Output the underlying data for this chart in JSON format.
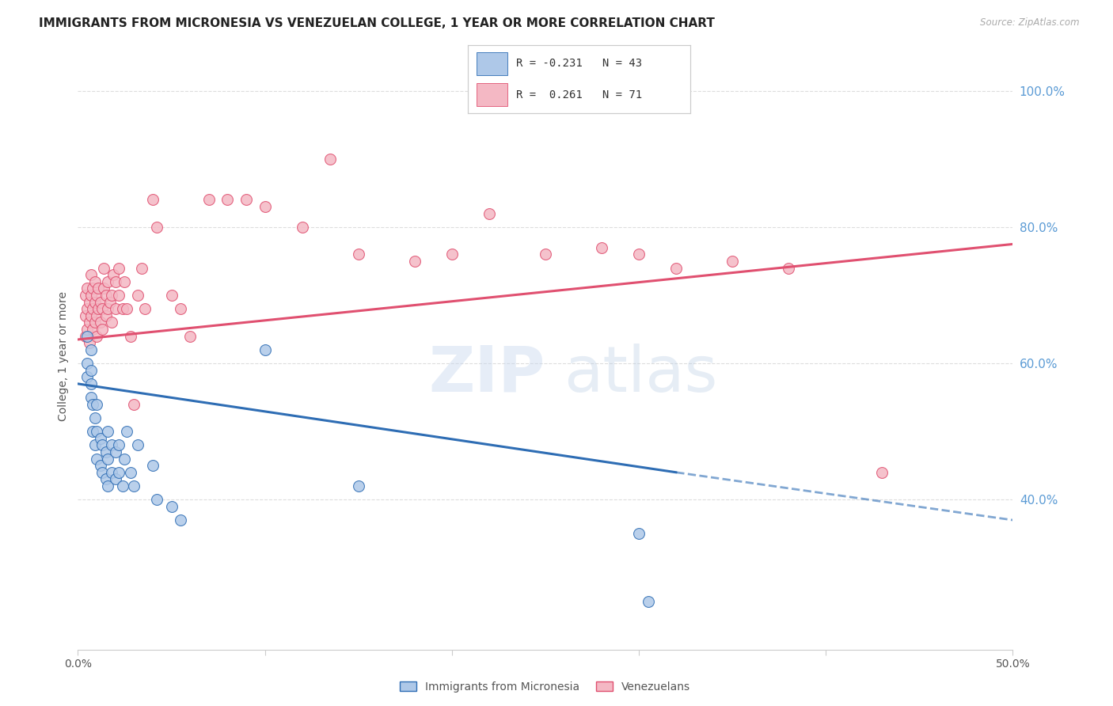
{
  "title": "IMMIGRANTS FROM MICRONESIA VS VENEZUELAN COLLEGE, 1 YEAR OR MORE CORRELATION CHART",
  "source": "Source: ZipAtlas.com",
  "ylabel": "College, 1 year or more",
  "xlim": [
    0.0,
    0.5
  ],
  "ylim": [
    0.18,
    1.04
  ],
  "xticks": [
    0.0,
    0.1,
    0.2,
    0.3,
    0.4,
    0.5
  ],
  "xticklabels": [
    "0.0%",
    "",
    "",
    "",
    "",
    "50.0%"
  ],
  "yticks_right": [
    0.4,
    0.6,
    0.8,
    1.0
  ],
  "ytick_right_labels": [
    "40.0%",
    "60.0%",
    "80.0%",
    "100.0%"
  ],
  "blue_label": "Immigrants from Micronesia",
  "pink_label": "Venezuelans",
  "blue_R": -0.231,
  "blue_N": 43,
  "pink_R": 0.261,
  "pink_N": 71,
  "blue_color": "#AEC8E8",
  "pink_color": "#F4B8C4",
  "blue_line_color": "#2E6DB4",
  "pink_line_color": "#E05070",
  "blue_scatter_x": [
    0.005,
    0.005,
    0.005,
    0.007,
    0.007,
    0.007,
    0.007,
    0.008,
    0.008,
    0.009,
    0.009,
    0.01,
    0.01,
    0.01,
    0.012,
    0.012,
    0.013,
    0.013,
    0.015,
    0.015,
    0.016,
    0.016,
    0.016,
    0.018,
    0.018,
    0.02,
    0.02,
    0.022,
    0.022,
    0.024,
    0.025,
    0.026,
    0.028,
    0.03,
    0.032,
    0.04,
    0.042,
    0.05,
    0.055,
    0.1,
    0.15,
    0.3,
    0.305
  ],
  "blue_scatter_y": [
    0.58,
    0.6,
    0.64,
    0.55,
    0.57,
    0.59,
    0.62,
    0.5,
    0.54,
    0.48,
    0.52,
    0.46,
    0.5,
    0.54,
    0.45,
    0.49,
    0.44,
    0.48,
    0.43,
    0.47,
    0.42,
    0.46,
    0.5,
    0.44,
    0.48,
    0.43,
    0.47,
    0.44,
    0.48,
    0.42,
    0.46,
    0.5,
    0.44,
    0.42,
    0.48,
    0.45,
    0.4,
    0.39,
    0.37,
    0.62,
    0.42,
    0.35,
    0.25
  ],
  "pink_scatter_x": [
    0.004,
    0.004,
    0.004,
    0.005,
    0.005,
    0.005,
    0.006,
    0.006,
    0.006,
    0.007,
    0.007,
    0.007,
    0.008,
    0.008,
    0.008,
    0.009,
    0.009,
    0.009,
    0.01,
    0.01,
    0.01,
    0.011,
    0.011,
    0.012,
    0.012,
    0.013,
    0.013,
    0.014,
    0.014,
    0.015,
    0.015,
    0.016,
    0.016,
    0.017,
    0.018,
    0.018,
    0.019,
    0.02,
    0.02,
    0.022,
    0.022,
    0.024,
    0.025,
    0.026,
    0.028,
    0.03,
    0.032,
    0.034,
    0.036,
    0.04,
    0.042,
    0.05,
    0.055,
    0.06,
    0.07,
    0.08,
    0.09,
    0.1,
    0.12,
    0.135,
    0.15,
    0.18,
    0.2,
    0.22,
    0.25,
    0.28,
    0.3,
    0.32,
    0.35,
    0.38,
    0.43
  ],
  "pink_scatter_y": [
    0.64,
    0.67,
    0.7,
    0.65,
    0.68,
    0.71,
    0.63,
    0.66,
    0.69,
    0.67,
    0.7,
    0.73,
    0.65,
    0.68,
    0.71,
    0.66,
    0.69,
    0.72,
    0.64,
    0.67,
    0.7,
    0.68,
    0.71,
    0.66,
    0.69,
    0.65,
    0.68,
    0.71,
    0.74,
    0.67,
    0.7,
    0.68,
    0.72,
    0.69,
    0.66,
    0.7,
    0.73,
    0.68,
    0.72,
    0.7,
    0.74,
    0.68,
    0.72,
    0.68,
    0.64,
    0.54,
    0.7,
    0.74,
    0.68,
    0.84,
    0.8,
    0.7,
    0.68,
    0.64,
    0.84,
    0.84,
    0.84,
    0.83,
    0.8,
    0.9,
    0.76,
    0.75,
    0.76,
    0.82,
    0.76,
    0.77,
    0.76,
    0.74,
    0.75,
    0.74,
    0.44
  ],
  "blue_line_x0": 0.0,
  "blue_line_y0": 0.57,
  "blue_line_x1": 0.32,
  "blue_line_y1": 0.44,
  "blue_line_xdash0": 0.32,
  "blue_line_ydash0": 0.44,
  "blue_line_xdash1": 0.5,
  "blue_line_ydash1": 0.37,
  "pink_line_x0": 0.0,
  "pink_line_y0": 0.635,
  "pink_line_x1": 0.5,
  "pink_line_y1": 0.775,
  "background_color": "#FFFFFF",
  "grid_color": "#DDDDDD",
  "right_axis_color": "#5B9BD5",
  "title_fontsize": 11,
  "axis_label_fontsize": 10,
  "tick_fontsize": 10
}
